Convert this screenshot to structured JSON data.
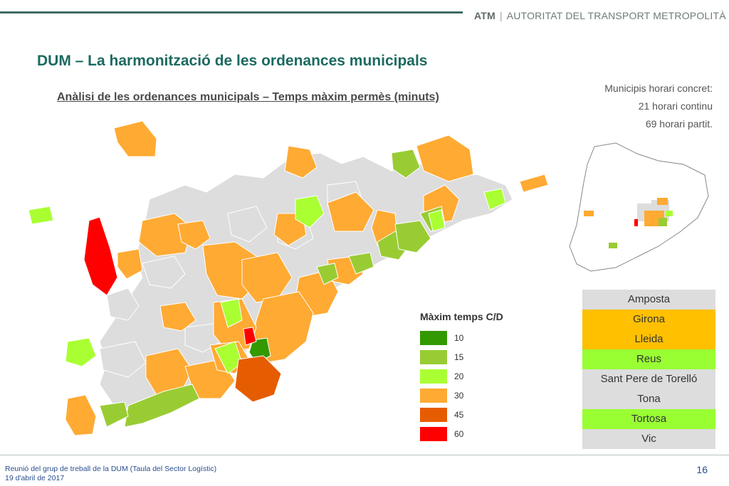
{
  "header": {
    "brand_bold": "ATM",
    "brand_sep": "|",
    "brand_name": "AUTORITAT DEL TRANSPORT METROPOLITÀ"
  },
  "slide": {
    "title": "DUM – La harmonització de les ordenances municipals",
    "subtitle": "Anàlisi de les ordenances municipals – Temps màxim permès (minuts)"
  },
  "info": {
    "line1": "Municipis horari concret:",
    "line2": "21 horari continu",
    "line3": "69 horari partit."
  },
  "legend": {
    "title": "Màxim temps C/D",
    "items": [
      {
        "value": "10",
        "color": "#339900"
      },
      {
        "value": "15",
        "color": "#99cc33"
      },
      {
        "value": "20",
        "color": "#aaff33"
      },
      {
        "value": "30",
        "color": "#ffaa33"
      },
      {
        "value": "45",
        "color": "#e65c00"
      },
      {
        "value": "60",
        "color": "#ff0000"
      }
    ]
  },
  "cities": [
    {
      "name": "Amposta",
      "color": "#dddddd"
    },
    {
      "name": "Girona",
      "color": "#ffc000"
    },
    {
      "name": "Lleida",
      "color": "#ffc000"
    },
    {
      "name": "Reus",
      "color": "#99ff33"
    },
    {
      "name": "Sant Pere de Torelló",
      "color": "#dddddd"
    },
    {
      "name": "Tona",
      "color": "#dddddd"
    },
    {
      "name": "Tortosa",
      "color": "#99ff33"
    },
    {
      "name": "Vic",
      "color": "#dddddd"
    }
  ],
  "footer": {
    "line1": "Reunió del grup de treball de la DUM (Taula del Sector Logístic)",
    "line2": "19 d'abril de 2017",
    "page": "16"
  }
}
